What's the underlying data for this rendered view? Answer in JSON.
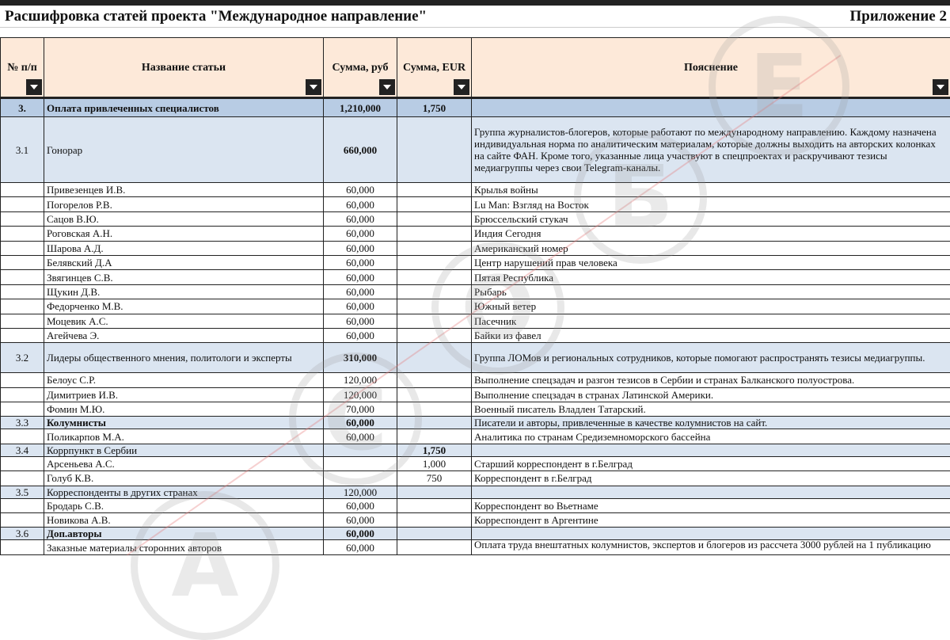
{
  "title": "Расшифровка статей проекта \"Международное направление\"",
  "appendix": "Приложение 2",
  "headers": [
    "№ п/п",
    "Название статьи",
    "Сумма, руб",
    "Сумма, EUR",
    "Пояснение"
  ],
  "rows": [
    {
      "type": "h1",
      "num": "3.",
      "name": "Оплата привлеченных специалистов",
      "rub": "1,210,000",
      "eur": "1,750",
      "note": ""
    },
    {
      "type": "h2",
      "num": "3.1",
      "name": "Гонорар",
      "rub": "660,000",
      "eur": "",
      "note": "Группа журналистов-блогеров, которые работают по международному направлению. Каждому назначена индивидуальная норма по аналитическим материалам, которые должны выходить на авторских колонках на сайте ФАН. Кроме того, указанные лица участвуют в спецпроектах и раскручивают тезисы медиагруппы через свои Telegram-каналы.",
      "tall": true
    },
    {
      "type": "r",
      "num": "",
      "name": "Привезенцев И.В.",
      "rub": "60,000",
      "eur": "",
      "note": "Крылья войны"
    },
    {
      "type": "r",
      "num": "",
      "name": "Погорелов Р.В.",
      "rub": "60,000",
      "eur": "",
      "note": "Lu Man: Взгляд на Восток"
    },
    {
      "type": "r",
      "num": "",
      "name": "Сацов В.Ю.",
      "rub": "60,000",
      "eur": "",
      "note": "Брюссельский стукач"
    },
    {
      "type": "r",
      "num": "",
      "name": "Роговская А.Н.",
      "rub": "60,000",
      "eur": "",
      "note": "Индия Сегодня"
    },
    {
      "type": "r",
      "num": "",
      "name": "Шарова А.Д.",
      "rub": "60,000",
      "eur": "",
      "note": "Американский номер"
    },
    {
      "type": "r",
      "num": "",
      "name": "Белявский Д.А",
      "rub": "60,000",
      "eur": "",
      "note": "Центр нарушений прав человека"
    },
    {
      "type": "r",
      "num": "",
      "name": "Звягинцев С.В.",
      "rub": "60,000",
      "eur": "",
      "note": "Пятая Республика"
    },
    {
      "type": "r",
      "num": "",
      "name": "Щукин Д.В.",
      "rub": "60,000",
      "eur": "",
      "note": "Рыбарь"
    },
    {
      "type": "r",
      "num": "",
      "name": "Федорченко М.В.",
      "rub": "60,000",
      "eur": "",
      "note": "Южный ветер"
    },
    {
      "type": "r",
      "num": "",
      "name": "Моцевик А.С.",
      "rub": "60,000",
      "eur": "",
      "note": "Пасечник"
    },
    {
      "type": "r",
      "num": "",
      "name": "Агейчева Э.",
      "rub": "60,000",
      "eur": "",
      "note": "Байки из фавел"
    },
    {
      "type": "h2",
      "num": "3.2",
      "name": "Лидеры общественного мнения, политологи и эксперты",
      "rub": "310,000",
      "eur": "",
      "note": "Группа ЛОМов и региональных сотрудников, которые помогают распространять тезисы медиагруппы.",
      "two": true
    },
    {
      "type": "r",
      "num": "",
      "name": "Белоус С.Р.",
      "rub": "120,000",
      "eur": "",
      "note": "Выполнение спецзадач и разгон тезисов в Сербии и странах Балканского полуострова."
    },
    {
      "type": "r",
      "num": "",
      "name": "Димитриев И.В.",
      "rub": "120,000",
      "eur": "",
      "note": "Выполнение спецзадач в странах Латинской Америки."
    },
    {
      "type": "r",
      "num": "",
      "name": "Фомин М.Ю.",
      "rub": "70,000",
      "eur": "",
      "note": "Военный писатель Владлен Татарский."
    },
    {
      "type": "h2",
      "num": "3.3",
      "name": "Колумнисты",
      "rub": "60,000",
      "eur": "",
      "note": "Писатели и авторы, привлеченные в качестве колумнистов на сайт."
    },
    {
      "type": "r",
      "num": "",
      "name": "Поликарпов М.А.",
      "rub": "60,000",
      "eur": "",
      "note": "Аналитика по странам Средиземноморского бассейна"
    },
    {
      "type": "h2",
      "num": "3.4",
      "name": "Коррпункт в Сербии",
      "rub": "",
      "eur": "1,750",
      "note": ""
    },
    {
      "type": "r",
      "num": "",
      "name": "Арсеньева А.С.",
      "rub": "",
      "eur": "1,000",
      "note": "Старший корреспондент в г.Белград"
    },
    {
      "type": "r",
      "num": "",
      "name": "Голуб К.В.",
      "rub": "",
      "eur": "750",
      "note": "Корреспондент в г.Белград"
    },
    {
      "type": "h2",
      "num": "3.5",
      "name": "Корреспонденты в других странах",
      "rub": "120,000",
      "eur": "",
      "note": "",
      "plain": true
    },
    {
      "type": "r",
      "num": "",
      "name": "Бродарь С.В.",
      "rub": "60,000",
      "eur": "",
      "note": "Корреспондент во Вьетнаме"
    },
    {
      "type": "r",
      "num": "",
      "name": "Новикова А.В.",
      "rub": "60,000",
      "eur": "",
      "note": "Корреспондент в Аргентине"
    },
    {
      "type": "h2",
      "num": "3.6",
      "name": "Доп.авторы",
      "rub": "60,000",
      "eur": "",
      "note": ""
    },
    {
      "type": "r",
      "num": "",
      "name": "Заказные материалы сторонних авторов",
      "rub": "60,000",
      "eur": "",
      "note": "Оплата труда внештатных колумнистов, экспертов и блогеров из рассчета 3000 рублей на 1 публикацию"
    }
  ],
  "watermark_letters": [
    "А",
    "Б",
    "В",
    "Е"
  ],
  "colors": {
    "header": "#fde9d9",
    "section": "#b8cce4",
    "subsection": "#dbe5f1"
  }
}
